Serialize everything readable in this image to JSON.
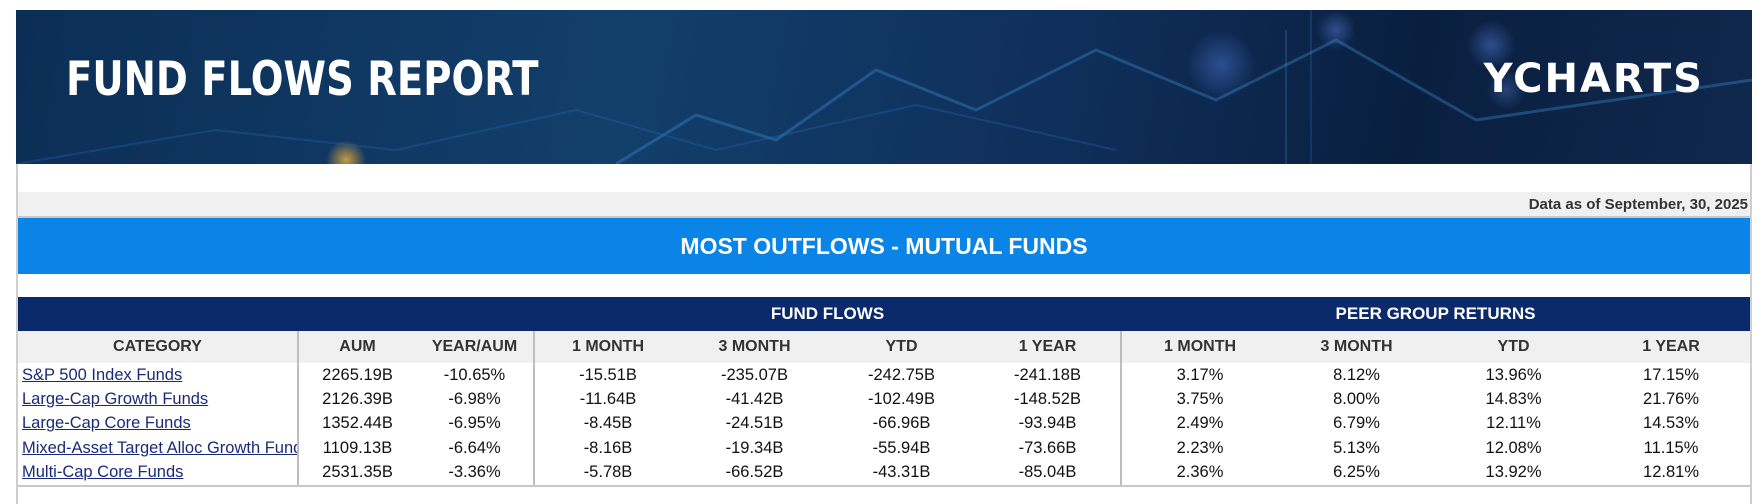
{
  "banner": {
    "title": "FUND FLOWS REPORT",
    "logo_text": "YCHARTS"
  },
  "as_of": "Data as of September, 30, 2025",
  "section_title": "MOST OUTFLOWS - MUTUAL FUNDS",
  "table": {
    "groups": {
      "fund_flows": "FUND FLOWS",
      "peer_group_returns": "PEER GROUP RETURNS"
    },
    "headers": [
      "CATEGORY",
      "AUM",
      "YEAR/AUM",
      "1 MONTH",
      "3 MONTH",
      "YTD",
      "1 YEAR",
      "1 MONTH",
      "3 MONTH",
      "YTD",
      "1 YEAR"
    ],
    "rows": [
      {
        "category": "S&P 500 Index Funds",
        "aum": "2265.19B",
        "year_aum": "-10.65%",
        "ff_1m": "-15.51B",
        "ff_3m": "-235.07B",
        "ff_ytd": "-242.75B",
        "ff_1y": "-241.18B",
        "pr_1m": "3.17%",
        "pr_3m": "8.12%",
        "pr_ytd": "13.96%",
        "pr_1y": "17.15%"
      },
      {
        "category": "Large-Cap Growth Funds",
        "aum": "2126.39B",
        "year_aum": "-6.98%",
        "ff_1m": "-11.64B",
        "ff_3m": "-41.42B",
        "ff_ytd": "-102.49B",
        "ff_1y": "-148.52B",
        "pr_1m": "3.75%",
        "pr_3m": "8.00%",
        "pr_ytd": "14.83%",
        "pr_1y": "21.76%"
      },
      {
        "category": "Large-Cap Core Funds",
        "aum": "1352.44B",
        "year_aum": "-6.95%",
        "ff_1m": "-8.45B",
        "ff_3m": "-24.51B",
        "ff_ytd": "-66.96B",
        "ff_1y": "-93.94B",
        "pr_1m": "2.49%",
        "pr_3m": "6.79%",
        "pr_ytd": "12.11%",
        "pr_1y": "14.53%"
      },
      {
        "category": "Mixed-Asset Target Alloc Growth Funds",
        "aum": "1109.13B",
        "year_aum": "-6.64%",
        "ff_1m": "-8.16B",
        "ff_3m": "-19.34B",
        "ff_ytd": "-55.94B",
        "ff_1y": "-73.66B",
        "pr_1m": "2.23%",
        "pr_3m": "5.13%",
        "pr_ytd": "12.08%",
        "pr_1y": "11.15%"
      },
      {
        "category": "Multi-Cap Core Funds",
        "aum": "2531.35B",
        "year_aum": "-3.36%",
        "ff_1m": "-5.78B",
        "ff_3m": "-66.52B",
        "ff_ytd": "-43.31B",
        "ff_1y": "-85.04B",
        "pr_1m": "2.36%",
        "pr_3m": "6.25%",
        "pr_ytd": "13.92%",
        "pr_1y": "12.81%"
      }
    ]
  }
}
